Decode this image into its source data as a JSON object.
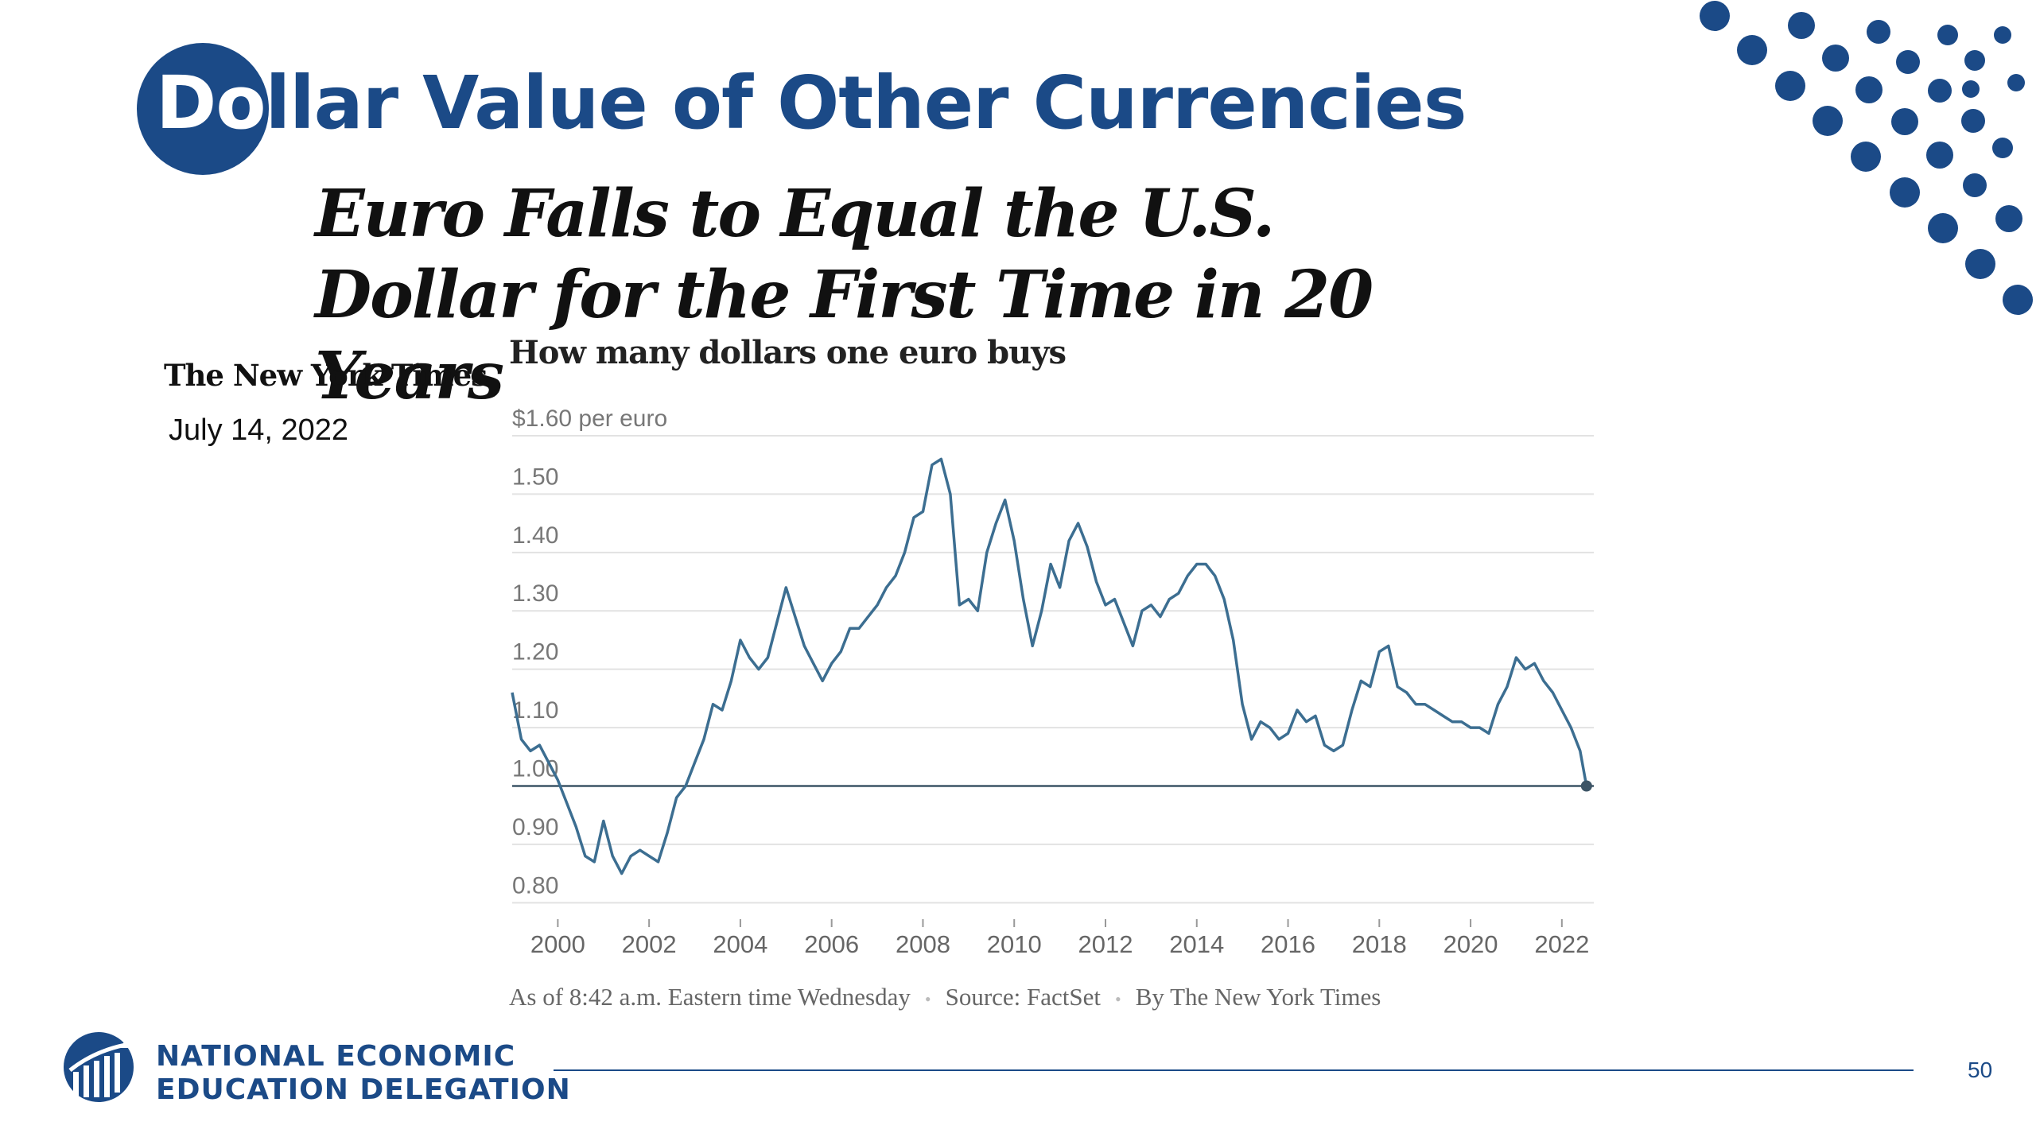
{
  "slide": {
    "title": "Dollar Value of Other Currencies",
    "headline": "Euro Falls to Equal the U.S. Dollar for the First Time in 20 Years",
    "publication": "The New York Times",
    "date": "July 14, 2022",
    "page_number": "50",
    "org_name_line1": "NATIONAL ECONOMIC",
    "org_name_line2": "EDUCATION DELEGATION",
    "brand_color": "#1b4a87"
  },
  "chart_data": {
    "type": "line",
    "title": "How many dollars one euro buys",
    "top_tick_label": "$1.60 per euro",
    "y_ticks": [
      {
        "value": 1.5,
        "label": "1.50"
      },
      {
        "value": 1.4,
        "label": "1.40"
      },
      {
        "value": 1.3,
        "label": "1.30"
      },
      {
        "value": 1.2,
        "label": "1.20"
      },
      {
        "value": 1.1,
        "label": "1.10"
      },
      {
        "value": 1.0,
        "label": "1.00"
      },
      {
        "value": 0.9,
        "label": "0.90"
      },
      {
        "value": 0.8,
        "label": "0.80"
      }
    ],
    "x_ticks": [
      {
        "value": 2000,
        "label": "2000"
      },
      {
        "value": 2002,
        "label": "2002"
      },
      {
        "value": 2004,
        "label": "2004"
      },
      {
        "value": 2006,
        "label": "2006"
      },
      {
        "value": 2008,
        "label": "2008"
      },
      {
        "value": 2010,
        "label": "2010"
      },
      {
        "value": 2012,
        "label": "2012"
      },
      {
        "value": 2014,
        "label": "2014"
      },
      {
        "value": 2016,
        "label": "2016"
      },
      {
        "value": 2018,
        "label": "2018"
      },
      {
        "value": 2020,
        "label": "2020"
      },
      {
        "value": 2022,
        "label": "2022"
      }
    ],
    "xlim": [
      1999,
      2022.7
    ],
    "ylim": [
      0.78,
      1.6
    ],
    "grid": true,
    "reference_line": 1.0,
    "line_color": "#3c6e91",
    "footnote": [
      "As of 8:42 a.m. Eastern time Wednesday",
      "Source: FactSet",
      "By The New York Times"
    ],
    "series": [
      {
        "x": [
          1999.0,
          1999.2,
          1999.4,
          1999.6,
          1999.8,
          2000.0,
          2000.2,
          2000.4,
          2000.6,
          2000.8,
          2001.0,
          2001.2,
          2001.4,
          2001.6,
          2001.8,
          2002.0,
          2002.2,
          2002.4,
          2002.6,
          2002.8,
          2003.0,
          2003.2,
          2003.4,
          2003.6,
          2003.8,
          2004.0,
          2004.2,
          2004.4,
          2004.6,
          2004.8,
          2005.0,
          2005.2,
          2005.4,
          2005.6,
          2005.8,
          2006.0,
          2006.2,
          2006.4,
          2006.6,
          2006.8,
          2007.0,
          2007.2,
          2007.4,
          2007.6,
          2007.8,
          2008.0,
          2008.2,
          2008.4,
          2008.6,
          2008.8,
          2009.0,
          2009.2,
          2009.4,
          2009.6,
          2009.8,
          2010.0,
          2010.2,
          2010.4,
          2010.6,
          2010.8,
          2011.0,
          2011.2,
          2011.4,
          2011.6,
          2011.8,
          2012.0,
          2012.2,
          2012.4,
          2012.6,
          2012.8,
          2013.0,
          2013.2,
          2013.4,
          2013.6,
          2013.8,
          2014.0,
          2014.2,
          2014.4,
          2014.6,
          2014.8,
          2015.0,
          2015.2,
          2015.4,
          2015.6,
          2015.8,
          2016.0,
          2016.2,
          2016.4,
          2016.6,
          2016.8,
          2017.0,
          2017.2,
          2017.4,
          2017.6,
          2017.8,
          2018.0,
          2018.2,
          2018.4,
          2018.6,
          2018.8,
          2019.0,
          2019.2,
          2019.4,
          2019.6,
          2019.8,
          2020.0,
          2020.2,
          2020.4,
          2020.6,
          2020.8,
          2021.0,
          2021.2,
          2021.4,
          2021.6,
          2021.8,
          2022.0,
          2022.2,
          2022.4,
          2022.54
        ],
        "y": [
          1.16,
          1.08,
          1.06,
          1.07,
          1.04,
          1.01,
          0.97,
          0.93,
          0.88,
          0.87,
          0.94,
          0.88,
          0.85,
          0.88,
          0.89,
          0.88,
          0.87,
          0.92,
          0.98,
          1.0,
          1.04,
          1.08,
          1.14,
          1.13,
          1.18,
          1.25,
          1.22,
          1.2,
          1.22,
          1.28,
          1.34,
          1.29,
          1.24,
          1.21,
          1.18,
          1.21,
          1.23,
          1.27,
          1.27,
          1.29,
          1.31,
          1.34,
          1.36,
          1.4,
          1.46,
          1.47,
          1.55,
          1.56,
          1.5,
          1.31,
          1.32,
          1.3,
          1.4,
          1.45,
          1.49,
          1.42,
          1.32,
          1.24,
          1.3,
          1.38,
          1.34,
          1.42,
          1.45,
          1.41,
          1.35,
          1.31,
          1.32,
          1.28,
          1.24,
          1.3,
          1.31,
          1.29,
          1.32,
          1.33,
          1.36,
          1.38,
          1.38,
          1.36,
          1.32,
          1.25,
          1.14,
          1.08,
          1.11,
          1.1,
          1.08,
          1.09,
          1.13,
          1.11,
          1.12,
          1.07,
          1.06,
          1.07,
          1.13,
          1.18,
          1.17,
          1.23,
          1.24,
          1.17,
          1.16,
          1.14,
          1.14,
          1.13,
          1.12,
          1.11,
          1.11,
          1.1,
          1.1,
          1.09,
          1.14,
          1.17,
          1.22,
          1.2,
          1.21,
          1.18,
          1.16,
          1.13,
          1.1,
          1.06,
          1.0
        ]
      }
    ]
  }
}
